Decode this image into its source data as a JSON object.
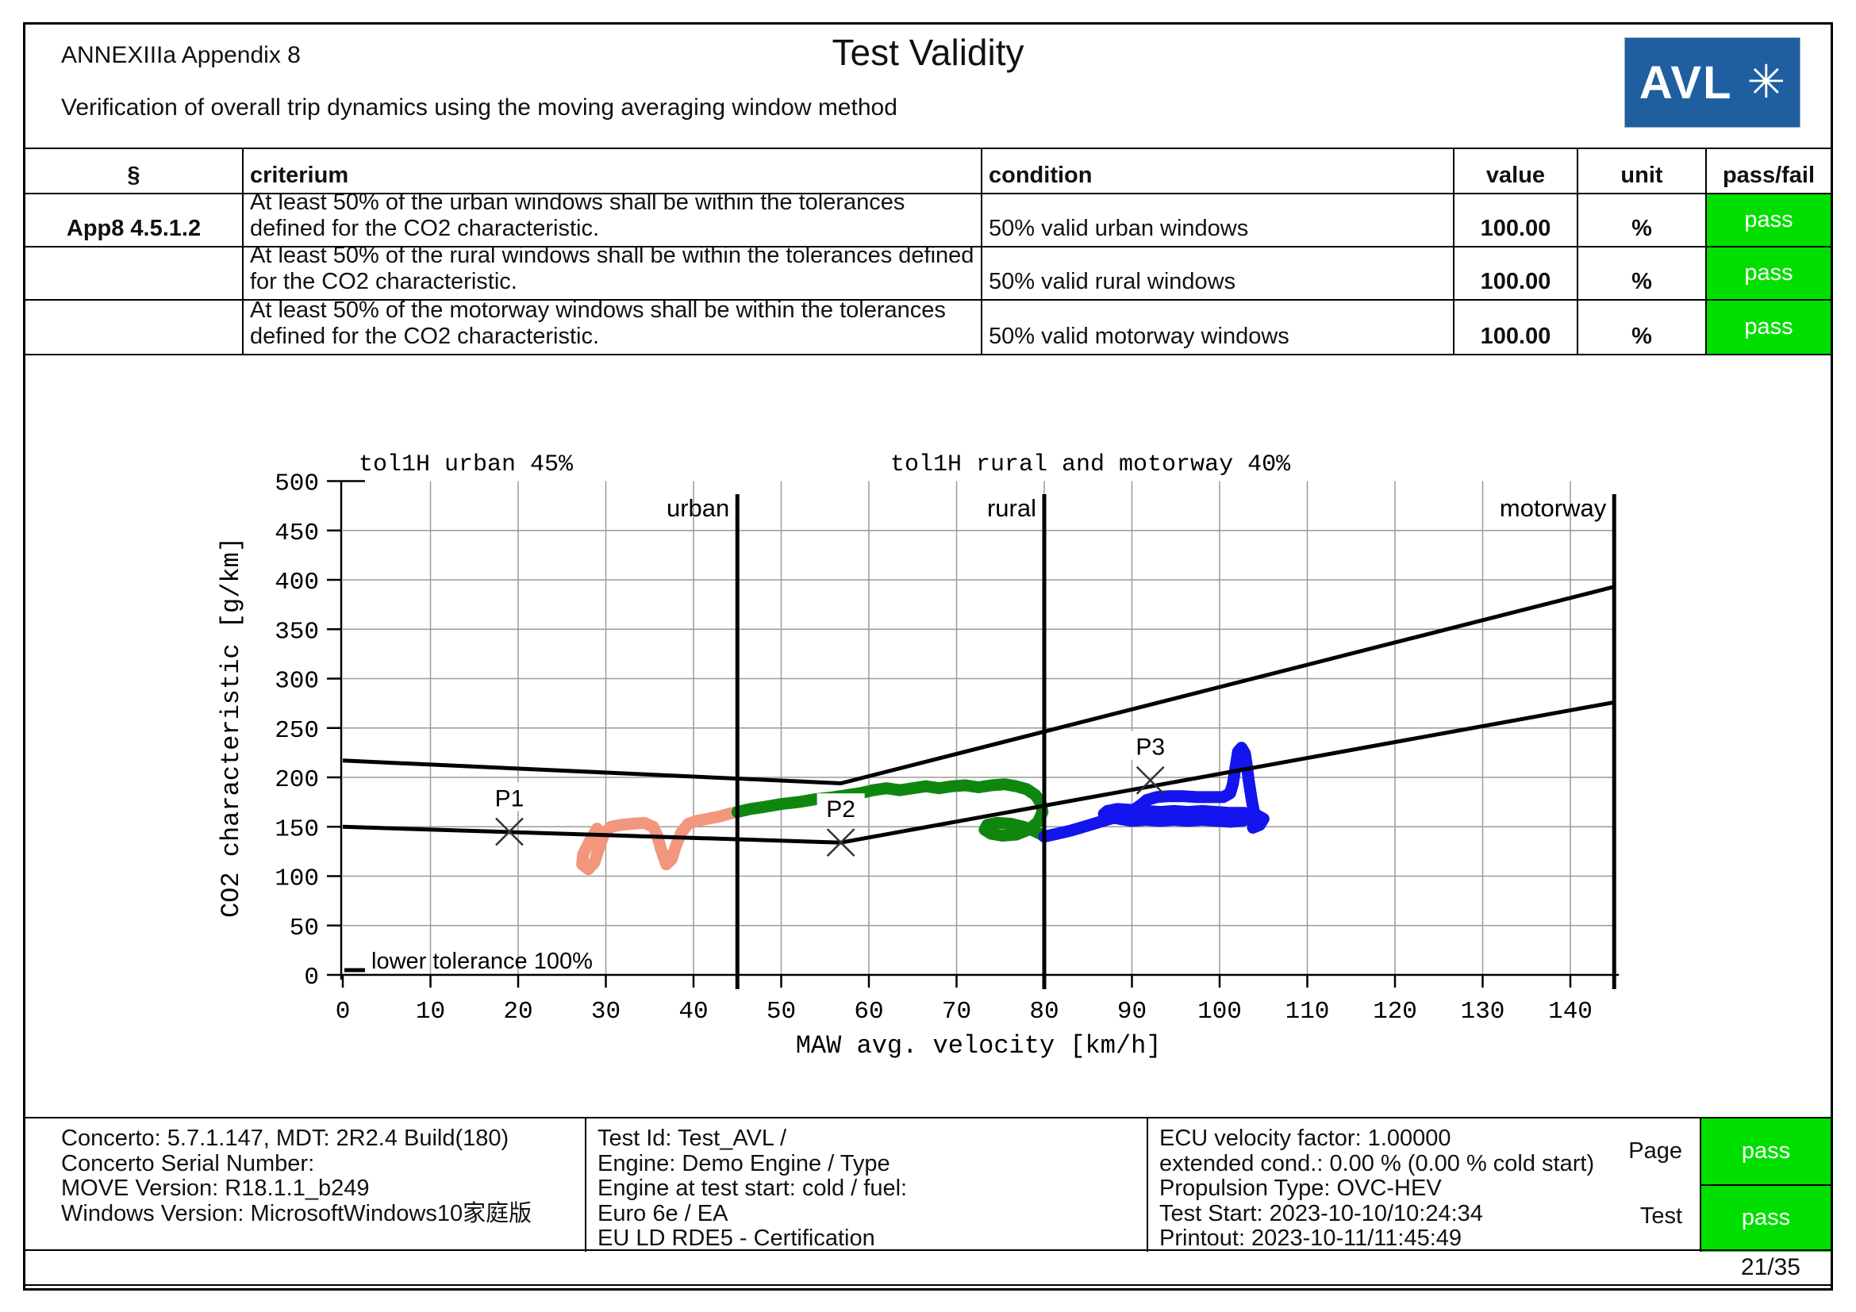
{
  "header": {
    "appendix": "ANNEXIIIa Appendix 8",
    "title": "Test Validity",
    "subtitle": "Verification of overall trip dynamics using the moving averaging window method",
    "logo_text": "AVL",
    "logo_mark": "✳"
  },
  "table": {
    "headers": {
      "par": "§",
      "criterium": "criterium",
      "condition": "condition",
      "value": "value",
      "unit": "unit",
      "passfail": "pass/fail"
    },
    "rows": [
      {
        "par": "App8 4.5.1.2",
        "criterium_l1": "At least 50% of the urban windows shall be within the tolerances",
        "criterium_l2": "defined for the CO2 characteristic.",
        "condition": "50% valid urban windows",
        "value": "100.00",
        "unit": "%",
        "result": "pass"
      },
      {
        "par": "",
        "criterium_l1": "At least 50% of the rural windows shall be within the tolerances defined",
        "criterium_l2": "for the CO2 characteristic.",
        "condition": "50% valid rural windows",
        "value": "100.00",
        "unit": "%",
        "result": "pass"
      },
      {
        "par": "",
        "criterium_l1": "At least 50% of the motorway windows shall be within the tolerances",
        "criterium_l2": "defined for the CO2 characteristic.",
        "condition": "50% valid motorway windows",
        "value": "100.00",
        "unit": "%",
        "result": "pass"
      }
    ]
  },
  "chart_data": {
    "type": "scatter",
    "title_left": "tol1H urban 45%",
    "title_right": "tol1H rural and motorway 40%",
    "xlabel": "MAW avg. velocity [km/h]",
    "ylabel": "CO2 characteristic [g/km]",
    "xlim": [
      0,
      145
    ],
    "ylim": [
      0,
      500
    ],
    "xticks": [
      0,
      10,
      20,
      30,
      40,
      50,
      60,
      70,
      80,
      90,
      100,
      110,
      120,
      130,
      140
    ],
    "yticks": [
      0,
      50,
      100,
      150,
      200,
      250,
      300,
      350,
      400,
      450,
      500
    ],
    "annotation_lower": "lower tolerance 100%",
    "region_boundaries": [
      {
        "label": "urban",
        "x": 45
      },
      {
        "label": "rural",
        "x": 80
      },
      {
        "label": "motorway",
        "x": 145
      }
    ],
    "tolerance_upper": [
      [
        0,
        217
      ],
      [
        56.8,
        194
      ],
      [
        145,
        393
      ]
    ],
    "tolerance_lower": [
      [
        0,
        150
      ],
      [
        56.8,
        134
      ],
      [
        145,
        276
      ]
    ],
    "markers": [
      {
        "label": "P1",
        "x": 19,
        "y": 145
      },
      {
        "label": "P2",
        "x": 56.8,
        "y": 134
      },
      {
        "label": "P3",
        "x": 92.1,
        "y": 197
      }
    ],
    "series": [
      {
        "name": "urban windows",
        "color": "#F2967D",
        "points": [
          [
            29,
            148
          ],
          [
            28.2,
            136
          ],
          [
            27.4,
            122
          ],
          [
            27.3,
            112
          ],
          [
            28,
            107
          ],
          [
            28.7,
            114
          ],
          [
            29.2,
            128
          ],
          [
            29.8,
            143
          ],
          [
            30.6,
            150
          ],
          [
            31.8,
            152
          ],
          [
            33,
            153
          ],
          [
            34.4,
            154
          ],
          [
            35.4,
            150
          ],
          [
            35.9,
            140
          ],
          [
            36.3,
            127
          ],
          [
            36.9,
            112
          ],
          [
            37.5,
            117
          ],
          [
            38,
            131
          ],
          [
            38.6,
            144
          ],
          [
            39.4,
            153
          ],
          [
            40.4,
            156
          ],
          [
            41.6,
            158
          ],
          [
            42.8,
            160
          ],
          [
            44,
            163
          ],
          [
            45,
            165
          ]
        ]
      },
      {
        "name": "rural windows",
        "color": "#0F870F",
        "points": [
          [
            45,
            165
          ],
          [
            46.5,
            168
          ],
          [
            48,
            170
          ],
          [
            50,
            173
          ],
          [
            52,
            175
          ],
          [
            54,
            178
          ],
          [
            56,
            180
          ],
          [
            57.5,
            182
          ],
          [
            59,
            184
          ],
          [
            60.5,
            187
          ],
          [
            62,
            189
          ],
          [
            63.5,
            187
          ],
          [
            65,
            189
          ],
          [
            66.5,
            191
          ],
          [
            68,
            189
          ],
          [
            69.5,
            191
          ],
          [
            71,
            192
          ],
          [
            72.5,
            190
          ],
          [
            74,
            192
          ],
          [
            75.5,
            193
          ],
          [
            76.8,
            191
          ],
          [
            78,
            188
          ],
          [
            79,
            182
          ],
          [
            79.6,
            174
          ],
          [
            79.8,
            165
          ],
          [
            79.3,
            155
          ],
          [
            78.2,
            147
          ],
          [
            76.8,
            142
          ],
          [
            75.2,
            141
          ],
          [
            73.9,
            143
          ],
          [
            73.2,
            147
          ],
          [
            73.5,
            152
          ],
          [
            74.6,
            154
          ],
          [
            76.2,
            153
          ],
          [
            77.6,
            150
          ],
          [
            78.8,
            146
          ],
          [
            79.7,
            142
          ],
          [
            80,
            140
          ]
        ]
      },
      {
        "name": "motorway windows",
        "color": "#1414EE",
        "points": [
          [
            80,
            140
          ],
          [
            81.5,
            143
          ],
          [
            83,
            146
          ],
          [
            84.5,
            150
          ],
          [
            86,
            154
          ],
          [
            87.5,
            158
          ],
          [
            89,
            162
          ],
          [
            90.2,
            167
          ],
          [
            91,
            172
          ],
          [
            91.7,
            177
          ],
          [
            92.8,
            180
          ],
          [
            94.2,
            181
          ],
          [
            95.8,
            181
          ],
          [
            97.4,
            180
          ],
          [
            99,
            180
          ],
          [
            100.4,
            180
          ],
          [
            101.2,
            184
          ],
          [
            101.5,
            193
          ],
          [
            101.7,
            204
          ],
          [
            101.9,
            215
          ],
          [
            102.1,
            226
          ],
          [
            102.5,
            230
          ],
          [
            102.9,
            224
          ],
          [
            103.1,
            212
          ],
          [
            103.3,
            198
          ],
          [
            103.5,
            186
          ],
          [
            103.7,
            175
          ],
          [
            103.9,
            166
          ],
          [
            103.6,
            159
          ],
          [
            102.6,
            156
          ],
          [
            101.2,
            155
          ],
          [
            99.6,
            156
          ],
          [
            98,
            157
          ],
          [
            96.4,
            156
          ],
          [
            94.8,
            157
          ],
          [
            93.2,
            156
          ],
          [
            91.6,
            157
          ],
          [
            90,
            156
          ],
          [
            88.6,
            158
          ],
          [
            87.4,
            160
          ],
          [
            86.8,
            163
          ],
          [
            87.2,
            166
          ],
          [
            88.4,
            168
          ],
          [
            90,
            167
          ],
          [
            91.6,
            166
          ],
          [
            93.2,
            165
          ],
          [
            94.8,
            166
          ],
          [
            96.4,
            165
          ],
          [
            98,
            166
          ],
          [
            99.6,
            165
          ],
          [
            101.2,
            164
          ],
          [
            102.8,
            164
          ],
          [
            104.2,
            162
          ],
          [
            105,
            158
          ],
          [
            104.6,
            152
          ],
          [
            103.8,
            149
          ]
        ]
      }
    ]
  },
  "footer": {
    "left": [
      "Concerto: 5.7.1.147, MDT: 2R2.4 Build(180)",
      "Concerto Serial Number:",
      "MOVE Version: R18.1.1_b249",
      "Windows Version: MicrosoftWindows10家庭版"
    ],
    "middle": [
      "Test Id: Test_AVL /",
      "Engine: Demo Engine / Type",
      "Engine at test start: cold / fuel:",
      "Euro 6e / EA",
      "EU LD RDE5 - Certification"
    ],
    "right": [
      "ECU velocity factor: 1.00000",
      "extended cond.: 0.00  % (0.00  % cold start)",
      "Propulsion Type: OVC-HEV",
      "Test Start: 2023-10-10/10:24:34",
      "Printout: 2023-10-11/11:45:49"
    ],
    "page_label": "Page",
    "test_label": "Test",
    "page_result": "pass",
    "test_result": "pass"
  },
  "page_number": "21/35",
  "colors": {
    "pass_green": "#00DF00",
    "logo_blue": "#1F5FA0",
    "urban_series": "#F2967D",
    "rural_series": "#0F870F",
    "motorway_series": "#1414EE",
    "grid_gray": "#9A9A9A"
  }
}
